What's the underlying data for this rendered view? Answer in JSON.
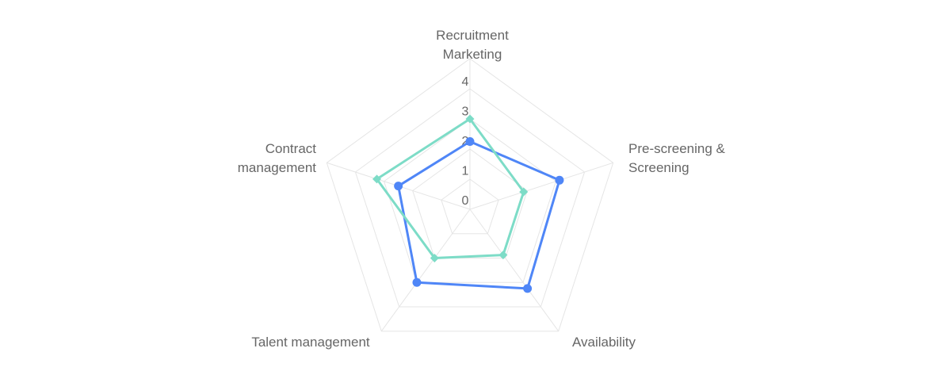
{
  "chart_data": {
    "type": "radar",
    "title": "",
    "axes": [
      [
        "Recruitment",
        "Marketing"
      ],
      [
        "Pre-screening &",
        "Screening"
      ],
      [
        "Availability"
      ],
      [
        "Talent management"
      ],
      [
        "Contract",
        "management"
      ]
    ],
    "r_range": [
      0,
      4
    ],
    "ticks": [
      "0",
      "1",
      "2",
      "3",
      "4"
    ],
    "grid": true,
    "series": [
      {
        "values": [
          1.8,
          2.5,
          2.6,
          2.4,
          2.0
        ],
        "color": "#4f86f7",
        "marker": "circle"
      },
      {
        "values": [
          2.4,
          1.5,
          1.5,
          1.6,
          2.6
        ],
        "color": "#7ddcc7",
        "marker": "diamond"
      }
    ]
  }
}
